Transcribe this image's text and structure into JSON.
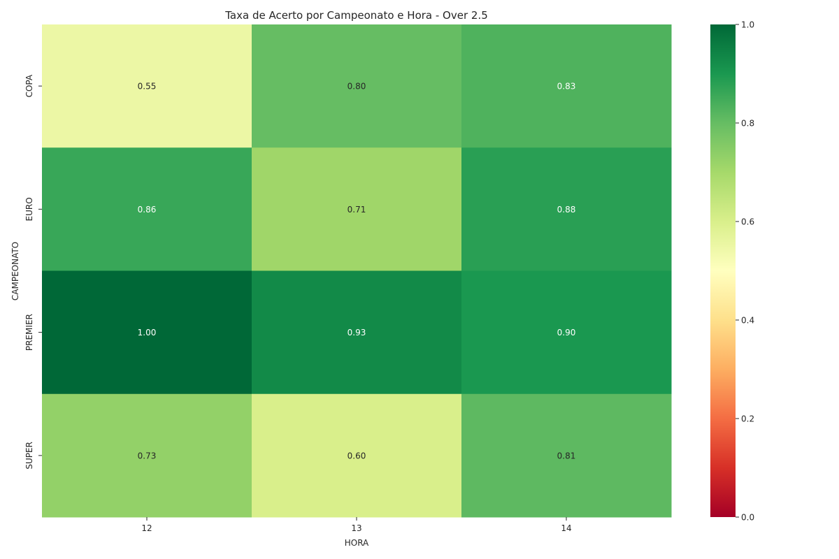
{
  "chart_data": {
    "type": "heatmap",
    "title": "Taxa de Acerto por Campeonato e Hora - Over 2.5",
    "xlabel": "HORA",
    "ylabel": "CAMPEONATO",
    "x_categories": [
      "12",
      "13",
      "14"
    ],
    "y_categories": [
      "COPA",
      "EURO",
      "PREMIER",
      "SUPER"
    ],
    "values": [
      [
        0.55,
        0.8,
        0.83
      ],
      [
        0.86,
        0.71,
        0.88
      ],
      [
        1.0,
        0.93,
        0.9
      ],
      [
        0.73,
        0.6,
        0.81
      ]
    ],
    "colorbar": {
      "min": 0.0,
      "max": 1.0,
      "ticks": [
        0.0,
        0.2,
        0.4,
        0.6,
        0.8,
        1.0
      ],
      "tick_labels": [
        "0.0",
        "0.2",
        "0.4",
        "0.6",
        "0.8",
        "1.0"
      ],
      "colormap": "RdYlGn"
    }
  }
}
